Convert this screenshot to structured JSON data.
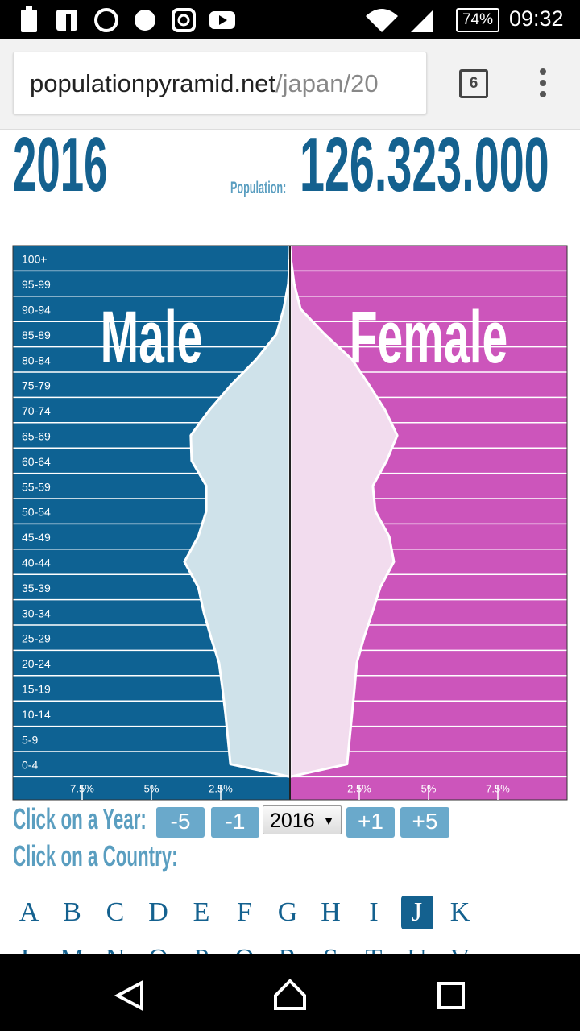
{
  "status_bar": {
    "battery": "74%",
    "time": "09:32"
  },
  "browser": {
    "url_host": "populationpyramid.net",
    "url_path": "/japan/20",
    "tab_count": "6"
  },
  "chart_data": {
    "type": "pyramid",
    "year": "2016",
    "population_label": "Population:",
    "population": "126.323.000",
    "categories": [
      "0-4",
      "5-9",
      "10-14",
      "15-19",
      "20-24",
      "25-29",
      "30-34",
      "35-39",
      "40-44",
      "45-49",
      "50-54",
      "55-59",
      "60-64",
      "65-69",
      "70-74",
      "75-79",
      "80-84",
      "85-89",
      "90-94",
      "95-99",
      "100+"
    ],
    "series": [
      {
        "name": "Male",
        "color": "#0e6293",
        "fill": "#cfe2ea",
        "values": [
          2.15,
          2.24,
          2.33,
          2.44,
          2.56,
          2.85,
          3.11,
          3.31,
          3.81,
          3.31,
          3.02,
          3.02,
          3.55,
          3.58,
          2.91,
          2.12,
          1.22,
          0.49,
          0.23,
          0.06,
          0.01
        ]
      },
      {
        "name": "Female",
        "color": "#cc55bb",
        "fill": "#f2dcee",
        "values": [
          2.06,
          2.15,
          2.24,
          2.33,
          2.41,
          2.67,
          2.97,
          3.26,
          3.75,
          3.58,
          3.08,
          2.99,
          3.49,
          3.87,
          3.43,
          2.85,
          2.24,
          1.25,
          0.38,
          0.15,
          0.03
        ]
      }
    ],
    "xlim": [
      -10,
      10
    ],
    "xticks": [
      {
        "value": -7.5,
        "label": "7.5%"
      },
      {
        "value": -5,
        "label": "5%"
      },
      {
        "value": -2.5,
        "label": "2.5%"
      },
      {
        "value": 2.5,
        "label": "2.5%"
      },
      {
        "value": 5,
        "label": "5%"
      },
      {
        "value": 7.5,
        "label": "7.5%"
      }
    ]
  },
  "controls": {
    "year_label": "Click on a Year:",
    "year_buttons": [
      "-5",
      "-1",
      "+1",
      "+5"
    ],
    "year_select": "2016",
    "country_label": "Click on a Country:",
    "letters": [
      "A",
      "B",
      "C",
      "D",
      "E",
      "F",
      "G",
      "H",
      "I",
      "J",
      "K"
    ],
    "letters_next": [
      "L",
      "M",
      "N",
      "O",
      "P",
      "Q",
      "R",
      "S",
      "T",
      "U",
      "V"
    ],
    "selected_letter": "J"
  }
}
